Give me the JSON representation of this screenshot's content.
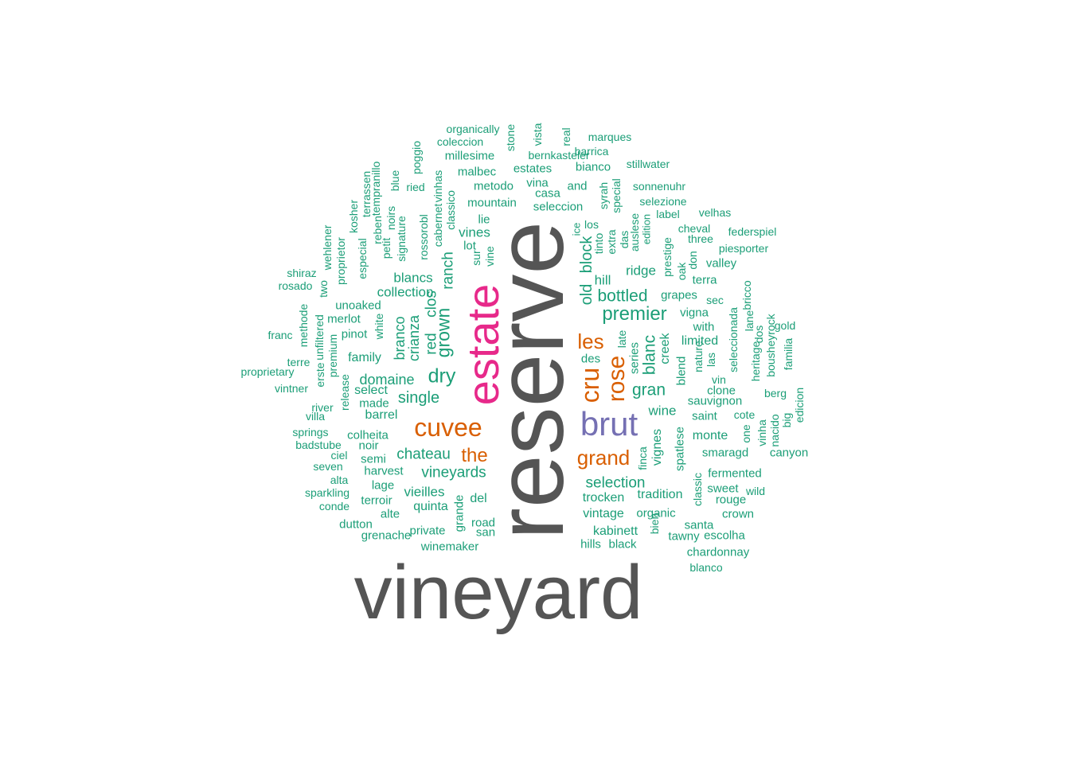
{
  "palette": {
    "green": "#1b9e77",
    "orange": "#d95f02",
    "purple": "#7570b3",
    "pink": "#e7298a",
    "gray": "#555555"
  },
  "words": [
    {
      "text": "vineyard",
      "c": "gray",
      "r": false
    },
    {
      "text": "reserve",
      "c": "gray",
      "r": true
    },
    {
      "text": "estate",
      "c": "pink",
      "r": true
    },
    {
      "text": "brut",
      "c": "purple",
      "r": false
    },
    {
      "text": "cuvee",
      "c": "orange",
      "r": false
    },
    {
      "text": "grand",
      "c": "orange",
      "r": false
    },
    {
      "text": "les",
      "c": "orange",
      "r": false
    },
    {
      "text": "cru",
      "c": "orange",
      "r": true
    },
    {
      "text": "rose",
      "c": "orange",
      "r": true
    },
    {
      "text": "the",
      "c": "orange",
      "r": false
    },
    {
      "text": "premier",
      "c": "green",
      "r": false
    },
    {
      "text": "old",
      "c": "green",
      "r": true
    },
    {
      "text": "block",
      "c": "green",
      "r": true
    },
    {
      "text": "bottled",
      "c": "green",
      "r": false
    },
    {
      "text": "dry",
      "c": "green",
      "r": false
    },
    {
      "text": "grown",
      "c": "green",
      "r": true
    },
    {
      "text": "gran",
      "c": "green",
      "r": false
    },
    {
      "text": "blanc",
      "c": "green",
      "r": true
    },
    {
      "text": "single",
      "c": "green",
      "r": false
    },
    {
      "text": "chateau",
      "c": "green",
      "r": false
    },
    {
      "text": "vineyards",
      "c": "green",
      "r": false
    },
    {
      "text": "selection",
      "c": "green",
      "r": false
    },
    {
      "text": "red",
      "c": "green",
      "r": true
    },
    {
      "text": "clos",
      "c": "green",
      "r": true
    },
    {
      "text": "ranch",
      "c": "green",
      "r": true
    },
    {
      "text": "crianza",
      "c": "green",
      "r": true
    },
    {
      "text": "branco",
      "c": "green",
      "r": true
    },
    {
      "text": "domaine",
      "c": "green",
      "r": false
    },
    {
      "text": "collection",
      "c": "green",
      "r": false
    },
    {
      "text": "blancs",
      "c": "green",
      "r": false
    },
    {
      "text": "vines",
      "c": "green",
      "r": false
    },
    {
      "text": "hill",
      "c": "green",
      "r": false
    },
    {
      "text": "ridge",
      "c": "green",
      "r": false
    },
    {
      "text": "vieilles",
      "c": "green",
      "r": false
    },
    {
      "text": "quinta",
      "c": "green",
      "r": false
    },
    {
      "text": "del",
      "c": "green",
      "r": false
    },
    {
      "text": "vintage",
      "c": "green",
      "r": false
    },
    {
      "text": "trocken",
      "c": "green",
      "r": false
    },
    {
      "text": "tradition",
      "c": "green",
      "r": false
    },
    {
      "text": "kabinett",
      "c": "green",
      "r": false
    },
    {
      "text": "wine",
      "c": "green",
      "r": false
    },
    {
      "text": "creek",
      "c": "green",
      "r": true
    },
    {
      "text": "series",
      "c": "green",
      "r": true
    },
    {
      "text": "vignes",
      "c": "green",
      "r": true
    },
    {
      "text": "limited",
      "c": "green",
      "r": false
    },
    {
      "text": "blend",
      "c": "green",
      "r": true
    },
    {
      "text": "des",
      "c": "green",
      "r": false
    },
    {
      "text": "barrel",
      "c": "green",
      "r": false
    },
    {
      "text": "select",
      "c": "green",
      "r": false
    },
    {
      "text": "made",
      "c": "green",
      "r": false
    },
    {
      "text": "colheita",
      "c": "green",
      "r": false
    },
    {
      "text": "noir",
      "c": "green",
      "r": false
    },
    {
      "text": "semi",
      "c": "green",
      "r": false
    },
    {
      "text": "harvest",
      "c": "green",
      "r": false
    },
    {
      "text": "lage",
      "c": "green",
      "r": false
    },
    {
      "text": "terroir",
      "c": "green",
      "r": false
    },
    {
      "text": "alte",
      "c": "green",
      "r": false
    },
    {
      "text": "private",
      "c": "green",
      "r": false
    },
    {
      "text": "winemaker",
      "c": "green",
      "r": false
    },
    {
      "text": "grenache",
      "c": "green",
      "r": false
    },
    {
      "text": "dutton",
      "c": "green",
      "r": false
    },
    {
      "text": "grande",
      "c": "green",
      "r": true
    },
    {
      "text": "road",
      "c": "green",
      "r": false
    },
    {
      "text": "san",
      "c": "green",
      "r": false
    },
    {
      "text": "hills",
      "c": "green",
      "r": false
    },
    {
      "text": "black",
      "c": "green",
      "r": false
    },
    {
      "text": "bien",
      "c": "green",
      "r": true
    },
    {
      "text": "organic",
      "c": "green",
      "r": false
    },
    {
      "text": "santa",
      "c": "green",
      "r": false
    },
    {
      "text": "tawny",
      "c": "green",
      "r": false
    },
    {
      "text": "escolha",
      "c": "green",
      "r": false
    },
    {
      "text": "chardonnay",
      "c": "green",
      "r": false
    },
    {
      "text": "blanco",
      "c": "green",
      "r": false
    },
    {
      "text": "crown",
      "c": "green",
      "r": false
    },
    {
      "text": "rouge",
      "c": "green",
      "r": false
    },
    {
      "text": "sweet",
      "c": "green",
      "r": false
    },
    {
      "text": "wild",
      "c": "green",
      "r": false
    },
    {
      "text": "fermented",
      "c": "green",
      "r": false
    },
    {
      "text": "classic",
      "c": "green",
      "r": true
    },
    {
      "text": "spatlese",
      "c": "green",
      "r": true
    },
    {
      "text": "finca",
      "c": "green",
      "r": true
    },
    {
      "text": "monte",
      "c": "green",
      "r": false
    },
    {
      "text": "smaragd",
      "c": "green",
      "r": false
    },
    {
      "text": "canyon",
      "c": "green",
      "r": false
    },
    {
      "text": "saint",
      "c": "green",
      "r": false
    },
    {
      "text": "sauvignon",
      "c": "green",
      "r": false
    },
    {
      "text": "clone",
      "c": "green",
      "r": false
    },
    {
      "text": "vin",
      "c": "green",
      "r": false
    },
    {
      "text": "cote",
      "c": "green",
      "r": false
    },
    {
      "text": "nature",
      "c": "green",
      "r": true
    },
    {
      "text": "las",
      "c": "green",
      "r": true
    },
    {
      "text": "one",
      "c": "green",
      "r": true
    },
    {
      "text": "vinha",
      "c": "green",
      "r": true
    },
    {
      "text": "nacido",
      "c": "green",
      "r": true
    },
    {
      "text": "big",
      "c": "green",
      "r": true
    },
    {
      "text": "edicion",
      "c": "green",
      "r": true
    },
    {
      "text": "berg",
      "c": "green",
      "r": false
    },
    {
      "text": "bousheyrock",
      "c": "green",
      "r": true
    },
    {
      "text": "familia",
      "c": "green",
      "r": true
    },
    {
      "text": "gold",
      "c": "green",
      "r": false
    },
    {
      "text": "heritage",
      "c": "green",
      "r": true
    },
    {
      "text": "dos",
      "c": "green",
      "r": true
    },
    {
      "text": "lane",
      "c": "green",
      "r": true
    },
    {
      "text": "seleccionada",
      "c": "green",
      "r": true
    },
    {
      "text": "bricco",
      "c": "green",
      "r": true
    },
    {
      "text": "late",
      "c": "green",
      "r": true
    },
    {
      "text": "with",
      "c": "green",
      "r": false
    },
    {
      "text": "vigna",
      "c": "green",
      "r": false
    },
    {
      "text": "grapes",
      "c": "green",
      "r": false
    },
    {
      "text": "sec",
      "c": "green",
      "r": false
    },
    {
      "text": "terra",
      "c": "green",
      "r": false
    },
    {
      "text": "valley",
      "c": "green",
      "r": false
    },
    {
      "text": "oak",
      "c": "green",
      "r": true
    },
    {
      "text": "don",
      "c": "green",
      "r": true
    },
    {
      "text": "prestige",
      "c": "green",
      "r": true
    },
    {
      "text": "piesporter",
      "c": "green",
      "r": false
    },
    {
      "text": "three",
      "c": "green",
      "r": false
    },
    {
      "text": "cheval",
      "c": "green",
      "r": false
    },
    {
      "text": "federspiel",
      "c": "green",
      "r": false
    },
    {
      "text": "velhas",
      "c": "green",
      "r": false
    },
    {
      "text": "label",
      "c": "green",
      "r": false
    },
    {
      "text": "selezione",
      "c": "green",
      "r": false
    },
    {
      "text": "edition",
      "c": "green",
      "r": true
    },
    {
      "text": "auslese",
      "c": "green",
      "r": true
    },
    {
      "text": "das",
      "c": "green",
      "r": true
    },
    {
      "text": "extra",
      "c": "green",
      "r": true
    },
    {
      "text": "tinto",
      "c": "green",
      "r": true
    },
    {
      "text": "special",
      "c": "green",
      "r": true
    },
    {
      "text": "syrah",
      "c": "green",
      "r": true
    },
    {
      "text": "los",
      "c": "green",
      "r": false
    },
    {
      "text": "ice",
      "c": "green",
      "r": true
    },
    {
      "text": "sonnenuhr",
      "c": "green",
      "r": false
    },
    {
      "text": "and",
      "c": "green",
      "r": false
    },
    {
      "text": "seleccion",
      "c": "green",
      "r": false
    },
    {
      "text": "casa",
      "c": "green",
      "r": false
    },
    {
      "text": "vina",
      "c": "green",
      "r": false
    },
    {
      "text": "mountain",
      "c": "green",
      "r": false
    },
    {
      "text": "metodo",
      "c": "green",
      "r": false
    },
    {
      "text": "malbec",
      "c": "green",
      "r": false
    },
    {
      "text": "estates",
      "c": "green",
      "r": false
    },
    {
      "text": "bianco",
      "c": "green",
      "r": false
    },
    {
      "text": "stillwater",
      "c": "green",
      "r": false
    },
    {
      "text": "barrica",
      "c": "green",
      "r": false
    },
    {
      "text": "bernkasteler",
      "c": "green",
      "r": false
    },
    {
      "text": "marques",
      "c": "green",
      "r": false
    },
    {
      "text": "real",
      "c": "green",
      "r": true
    },
    {
      "text": "vista",
      "c": "green",
      "r": true
    },
    {
      "text": "stone",
      "c": "green",
      "r": true
    },
    {
      "text": "millesime",
      "c": "green",
      "r": false
    },
    {
      "text": "coleccion",
      "c": "green",
      "r": false
    },
    {
      "text": "organically",
      "c": "green",
      "r": false
    },
    {
      "text": "lie",
      "c": "green",
      "r": false
    },
    {
      "text": "lot",
      "c": "green",
      "r": false
    },
    {
      "text": "sur",
      "c": "green",
      "r": true
    },
    {
      "text": "vine",
      "c": "green",
      "r": true
    },
    {
      "text": "classico",
      "c": "green",
      "r": true
    },
    {
      "text": "cabernet",
      "c": "green",
      "r": true
    },
    {
      "text": "vinhas",
      "c": "green",
      "r": true
    },
    {
      "text": "ried",
      "c": "green",
      "r": false
    },
    {
      "text": "poggio",
      "c": "green",
      "r": true
    },
    {
      "text": "rossorobl",
      "c": "green",
      "r": true
    },
    {
      "text": "signature",
      "c": "green",
      "r": true
    },
    {
      "text": "blue",
      "c": "green",
      "r": true
    },
    {
      "text": "noirs",
      "c": "green",
      "r": true
    },
    {
      "text": "petit",
      "c": "green",
      "r": true
    },
    {
      "text": "reben",
      "c": "green",
      "r": true
    },
    {
      "text": "tempranillo",
      "c": "green",
      "r": true
    },
    {
      "text": "terrassen",
      "c": "green",
      "r": true
    },
    {
      "text": "kosher",
      "c": "green",
      "r": true
    },
    {
      "text": "especial",
      "c": "green",
      "r": true
    },
    {
      "text": "proprietor",
      "c": "green",
      "r": true
    },
    {
      "text": "wehlener",
      "c": "green",
      "r": true
    },
    {
      "text": "two",
      "c": "green",
      "r": true
    },
    {
      "text": "shiraz",
      "c": "green",
      "r": false
    },
    {
      "text": "rosado",
      "c": "green",
      "r": false
    },
    {
      "text": "unoaked",
      "c": "green",
      "r": false
    },
    {
      "text": "merlot",
      "c": "green",
      "r": false
    },
    {
      "text": "white",
      "c": "green",
      "r": true
    },
    {
      "text": "pinot",
      "c": "green",
      "r": false
    },
    {
      "text": "family",
      "c": "green",
      "r": false
    },
    {
      "text": "methode",
      "c": "green",
      "r": true
    },
    {
      "text": "unfiltered",
      "c": "green",
      "r": true
    },
    {
      "text": "premium",
      "c": "green",
      "r": true
    },
    {
      "text": "franc",
      "c": "green",
      "r": false
    },
    {
      "text": "terre",
      "c": "green",
      "r": false
    },
    {
      "text": "proprietary",
      "c": "green",
      "r": false
    },
    {
      "text": "vintner",
      "c": "green",
      "r": false
    },
    {
      "text": "erste",
      "c": "green",
      "r": true
    },
    {
      "text": "release",
      "c": "green",
      "r": true
    },
    {
      "text": "river",
      "c": "green",
      "r": false
    },
    {
      "text": "villa",
      "c": "green",
      "r": false
    },
    {
      "text": "springs",
      "c": "green",
      "r": false
    },
    {
      "text": "badstube",
      "c": "green",
      "r": false
    },
    {
      "text": "ciel",
      "c": "green",
      "r": false
    },
    {
      "text": "seven",
      "c": "green",
      "r": false
    },
    {
      "text": "alta",
      "c": "green",
      "r": false
    },
    {
      "text": "sparkling",
      "c": "green",
      "r": false
    },
    {
      "text": "conde",
      "c": "green",
      "r": false
    }
  ]
}
